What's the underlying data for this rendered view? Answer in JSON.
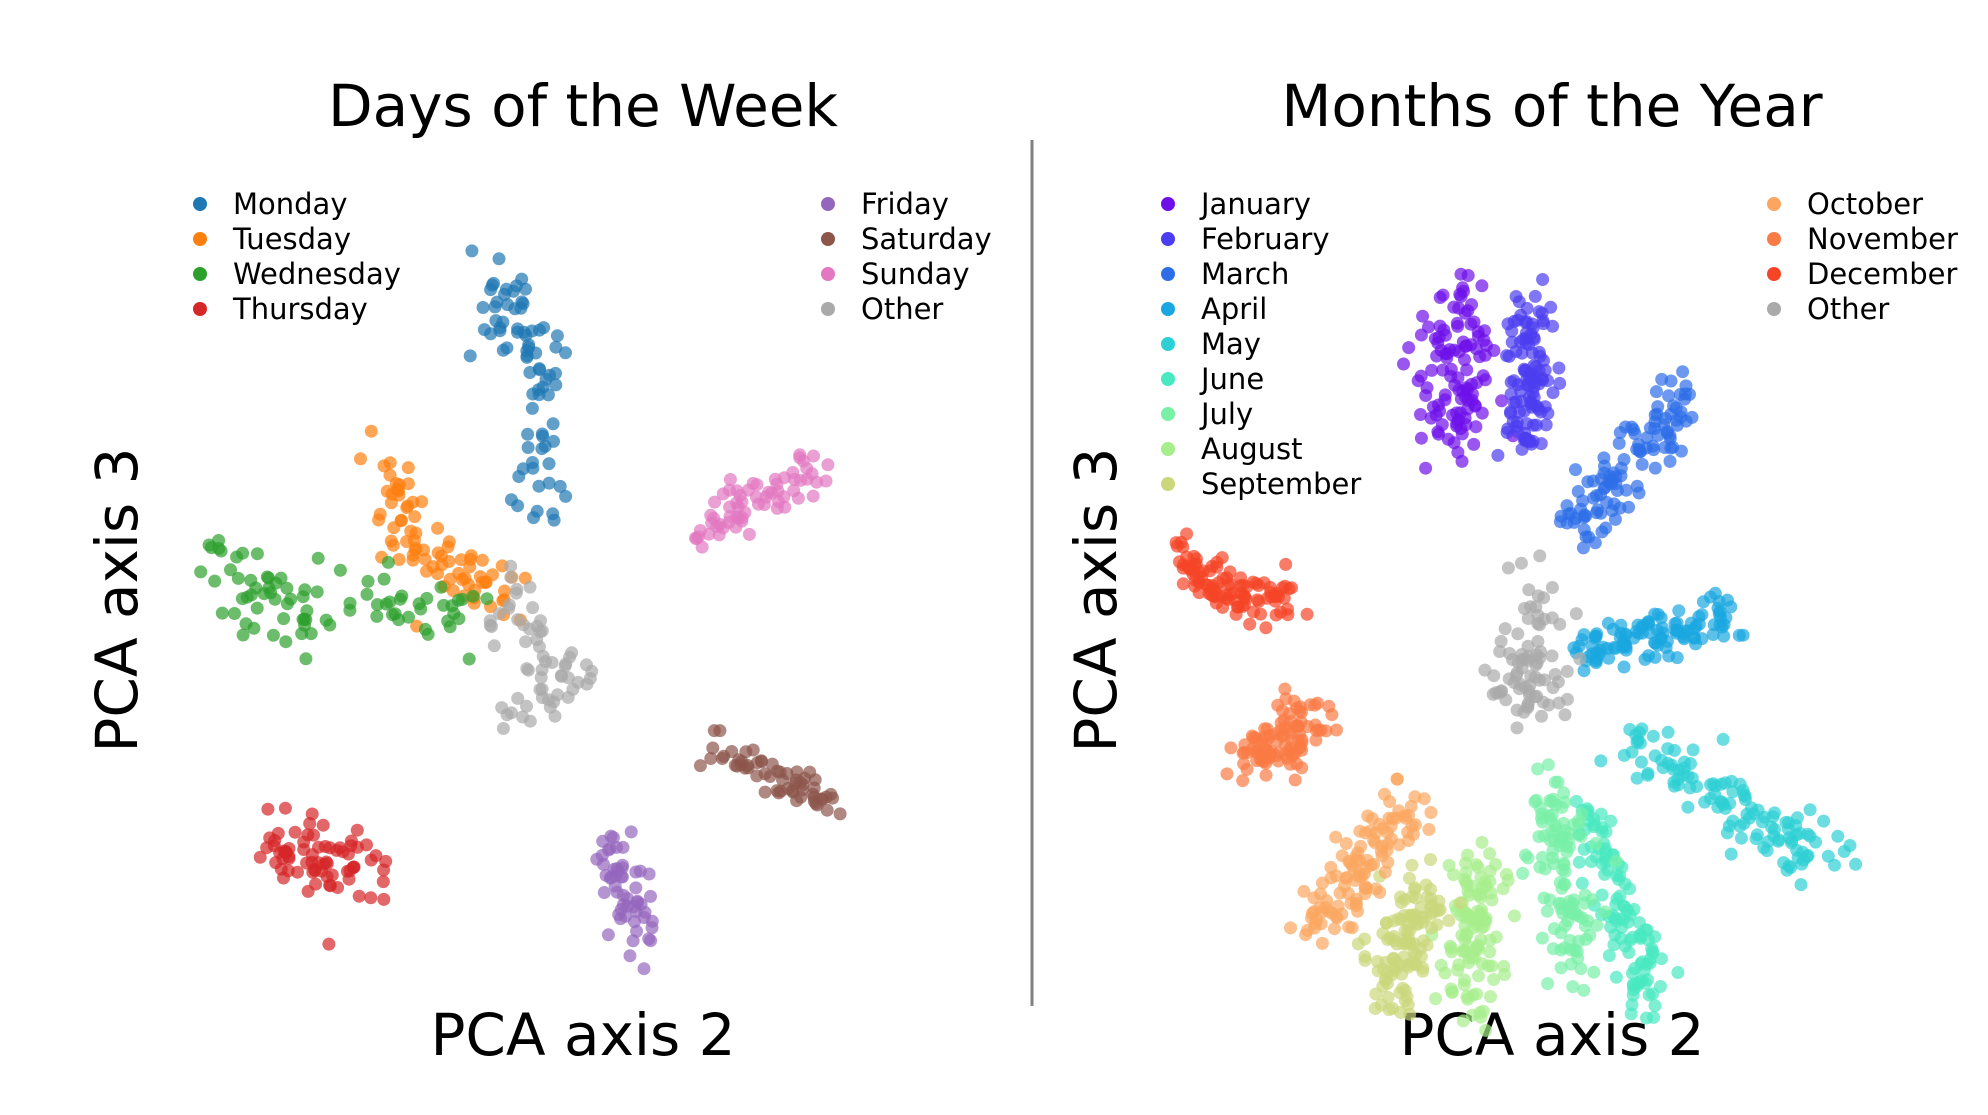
{
  "chart_data": [
    {
      "type": "scatter",
      "title": "Days of the Week",
      "xlabel": "PCA axis 2",
      "ylabel": "PCA axis 3",
      "xlim": [
        -1,
        1
      ],
      "ylim": [
        -1,
        1
      ],
      "grid": false,
      "axes_visible": false,
      "point_opacity": 0.7,
      "legend_left": [
        "Monday",
        "Tuesday",
        "Wednesday",
        "Thursday"
      ],
      "legend_right": [
        "Friday",
        "Saturday",
        "Sunday",
        "Other"
      ],
      "series": [
        {
          "name": "Monday",
          "color": "#1f77b4",
          "n": 80,
          "path": [
            [
              -0.08,
              0.82
            ],
            [
              -0.1,
              0.66
            ],
            [
              0.0,
              0.58
            ],
            [
              0.0,
              0.4
            ],
            [
              0.0,
              0.22
            ]
          ],
          "spread": 0.035
        },
        {
          "name": "Tuesday",
          "color": "#ff7f0e",
          "n": 80,
          "path": [
            [
              -0.42,
              0.38
            ],
            [
              -0.36,
              0.25
            ],
            [
              -0.3,
              0.13
            ],
            [
              -0.2,
              0.08
            ],
            [
              -0.1,
              0.04
            ]
          ],
          "spread": 0.035
        },
        {
          "name": "Wednesday",
          "color": "#2ca02c",
          "n": 85,
          "path": [
            [
              -0.82,
              0.13
            ],
            [
              -0.72,
              0.05
            ],
            [
              -0.62,
              -0.04
            ],
            [
              -0.48,
              0.04
            ],
            [
              -0.32,
              0.0
            ],
            [
              -0.2,
              -0.02
            ]
          ],
          "spread": 0.04
        },
        {
          "name": "Thursday",
          "color": "#d62728",
          "n": 75,
          "path": [
            [
              -0.65,
              -0.55
            ],
            [
              -0.55,
              -0.58
            ],
            [
              -0.45,
              -0.62
            ]
          ],
          "spread": 0.045
        },
        {
          "name": "Friday",
          "color": "#9467bd",
          "n": 55,
          "path": [
            [
              0.14,
              -0.52
            ],
            [
              0.2,
              -0.66
            ],
            [
              0.24,
              -0.78
            ]
          ],
          "spread": 0.03
        },
        {
          "name": "Saturday",
          "color": "#8c564b",
          "n": 60,
          "path": [
            [
              0.38,
              -0.3
            ],
            [
              0.55,
              -0.38
            ],
            [
              0.7,
              -0.45
            ]
          ],
          "spread": 0.025
        },
        {
          "name": "Sunday",
          "color": "#e377c2",
          "n": 65,
          "path": [
            [
              0.38,
              0.18
            ],
            [
              0.52,
              0.26
            ],
            [
              0.68,
              0.34
            ]
          ],
          "spread": 0.03
        },
        {
          "name": "Other",
          "color": "#aaaaaa",
          "n": 60,
          "path": [
            [
              -0.08,
              0.05
            ],
            [
              -0.02,
              -0.1
            ],
            [
              0.06,
              -0.16
            ],
            [
              -0.12,
              -0.28
            ]
          ],
          "spread": 0.03
        }
      ]
    },
    {
      "type": "scatter",
      "title": "Months of the Year",
      "xlabel": "PCA axis 2",
      "ylabel": "PCA axis 3",
      "xlim": [
        -1,
        1
      ],
      "ylim": [
        -1,
        1
      ],
      "grid": false,
      "axes_visible": false,
      "point_opacity": 0.7,
      "legend_left": [
        "January",
        "February",
        "March",
        "April",
        "May",
        "June",
        "July",
        "August",
        "September"
      ],
      "legend_right": [
        "October",
        "November",
        "December",
        "Other"
      ],
      "series": [
        {
          "name": "January",
          "color": "#6e0fea",
          "n": 110,
          "path": [
            [
              -0.22,
              0.82
            ],
            [
              -0.2,
              0.65
            ],
            [
              -0.21,
              0.48
            ]
          ],
          "spread": 0.045
        },
        {
          "name": "February",
          "color": "#4b3df0",
          "n": 110,
          "path": [
            [
              -0.02,
              0.82
            ],
            [
              -0.02,
              0.65
            ],
            [
              -0.03,
              0.48
            ]
          ],
          "spread": 0.03
        },
        {
          "name": "March",
          "color": "#2d6ee8",
          "n": 110,
          "path": [
            [
              0.08,
              0.3
            ],
            [
              0.22,
              0.45
            ],
            [
              0.36,
              0.62
            ]
          ],
          "spread": 0.035
        },
        {
          "name": "April",
          "color": "#1aa6e0",
          "n": 110,
          "path": [
            [
              0.1,
              0.01
            ],
            [
              0.28,
              0.06
            ],
            [
              0.46,
              0.09
            ]
          ],
          "spread": 0.03
        },
        {
          "name": "May",
          "color": "#2dd0d4",
          "n": 120,
          "path": [
            [
              0.2,
              -0.18
            ],
            [
              0.45,
              -0.32
            ],
            [
              0.72,
              -0.47
            ]
          ],
          "spread": 0.03
        },
        {
          "name": "June",
          "color": "#48e8c0",
          "n": 110,
          "path": [
            [
              0.12,
              -0.35
            ],
            [
              0.2,
              -0.58
            ],
            [
              0.28,
              -0.78
            ]
          ],
          "spread": 0.03
        },
        {
          "name": "July",
          "color": "#78f0a6",
          "n": 110,
          "path": [
            [
              0.02,
              -0.25
            ],
            [
              0.06,
              -0.5
            ],
            [
              0.08,
              -0.72
            ]
          ],
          "spread": 0.035
        },
        {
          "name": "August",
          "color": "#a6ee8c",
          "n": 110,
          "path": [
            [
              -0.14,
              -0.48
            ],
            [
              -0.16,
              -0.62
            ],
            [
              -0.17,
              -0.78
            ]
          ],
          "spread": 0.035
        },
        {
          "name": "September",
          "color": "#cad77a",
          "n": 110,
          "path": [
            [
              -0.28,
              -0.52
            ],
            [
              -0.33,
              -0.64
            ],
            [
              -0.36,
              -0.76
            ]
          ],
          "spread": 0.04
        },
        {
          "name": "October",
          "color": "#fba660",
          "n": 110,
          "path": [
            [
              -0.32,
              -0.32
            ],
            [
              -0.43,
              -0.46
            ],
            [
              -0.56,
              -0.6
            ]
          ],
          "spread": 0.035
        },
        {
          "name": "November",
          "color": "#f97b45",
          "n": 100,
          "path": [
            [
              -0.72,
              -0.22
            ],
            [
              -0.64,
              -0.18
            ],
            [
              -0.54,
              -0.12
            ]
          ],
          "spread": 0.035
        },
        {
          "name": "December",
          "color": "#f54426",
          "n": 100,
          "path": [
            [
              -0.88,
              0.22
            ],
            [
              -0.76,
              0.17
            ],
            [
              -0.62,
              0.12
            ]
          ],
          "spread": 0.028
        },
        {
          "name": "Other",
          "color": "#aaaaaa",
          "n": 80,
          "path": [
            [
              -0.02,
              0.18
            ],
            [
              0.0,
              0.02
            ],
            [
              -0.08,
              -0.06
            ],
            [
              0.06,
              -0.12
            ]
          ],
          "spread": 0.04
        }
      ]
    }
  ]
}
